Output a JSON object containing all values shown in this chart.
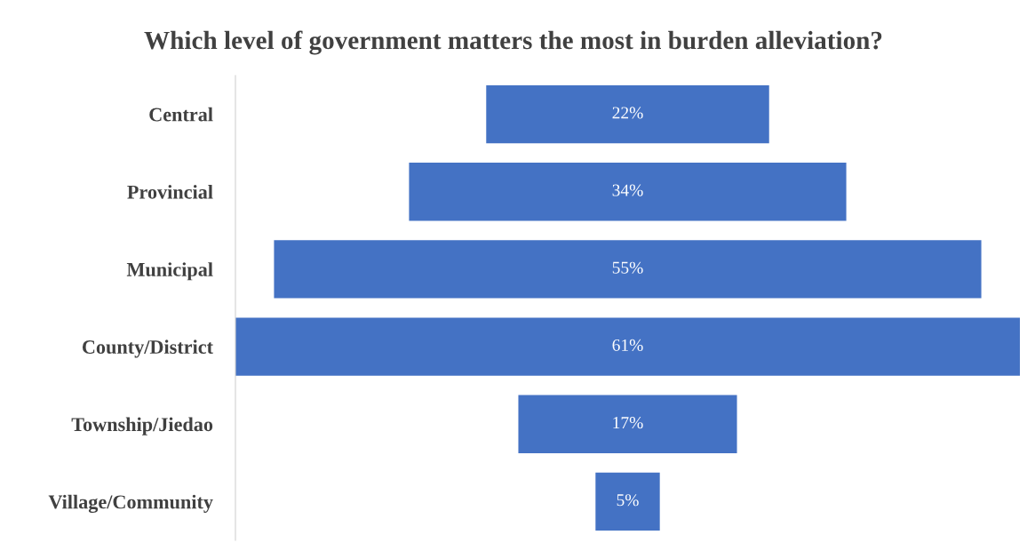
{
  "chart_data": {
    "type": "other",
    "title": "Which level of government matters the most in burden alleviation?",
    "categories": [
      "Central",
      "Provincial",
      "Municipal",
      "County/District",
      "Township/Jiedao",
      "Village/Community"
    ],
    "values": [
      22,
      34,
      55,
      61,
      17,
      5
    ],
    "value_labels": [
      "22%",
      "34%",
      "55%",
      "61%",
      "17%",
      "5%"
    ],
    "color": "#4472c4"
  }
}
